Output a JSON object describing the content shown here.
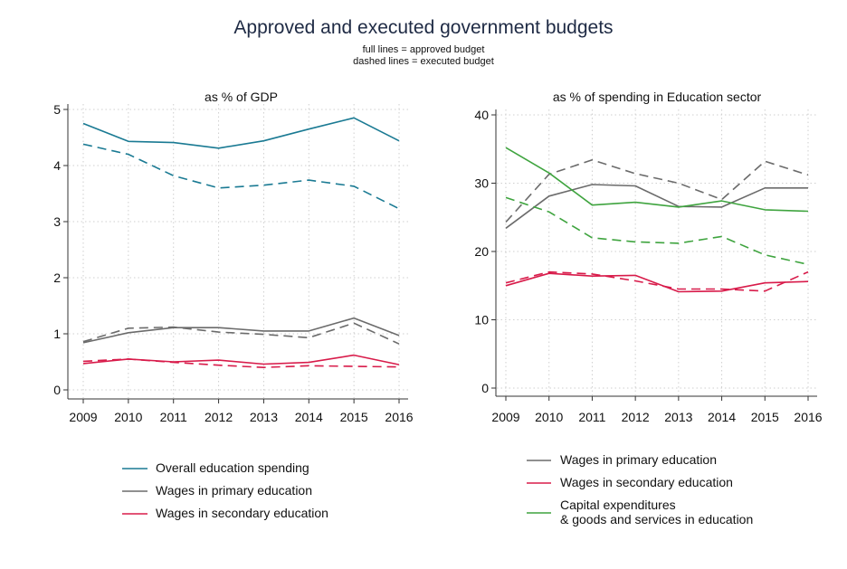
{
  "title": "Approved and executed government budgets",
  "subtitle_lines": [
    "full lines = approved budget",
    "dashed lines = executed budget"
  ],
  "colors": {
    "overall": "#1a7a93",
    "primary": "#6b6b6b",
    "secondary": "#d81b4a",
    "capital": "#3fa43f",
    "axis": "#333333",
    "grid": "#cfcfcf"
  },
  "chart_data": [
    {
      "type": "line",
      "title": "as % of GDP",
      "x": [
        2009,
        2010,
        2011,
        2012,
        2013,
        2014,
        2015,
        2016
      ],
      "ylim": [
        0,
        5
      ],
      "yticks": [
        0,
        1,
        2,
        3,
        4,
        5
      ],
      "series": [
        {
          "name": "Overall education spending",
          "color_key": "overall",
          "style": "approved",
          "values": [
            4.75,
            4.43,
            4.41,
            4.31,
            4.44,
            4.65,
            4.85,
            4.44
          ]
        },
        {
          "name": "Overall education spending",
          "color_key": "overall",
          "style": "executed",
          "values": [
            4.38,
            4.2,
            3.82,
            3.6,
            3.65,
            3.74,
            3.63,
            3.23
          ]
        },
        {
          "name": "Wages in primary education",
          "color_key": "primary",
          "style": "approved",
          "values": [
            0.84,
            1.02,
            1.11,
            1.11,
            1.05,
            1.05,
            1.28,
            0.97
          ]
        },
        {
          "name": "Wages in primary education",
          "color_key": "primary",
          "style": "executed",
          "values": [
            0.86,
            1.1,
            1.12,
            1.03,
            0.99,
            0.93,
            1.19,
            0.82
          ]
        },
        {
          "name": "Wages in secondary education",
          "color_key": "secondary",
          "style": "approved",
          "values": [
            0.47,
            0.55,
            0.5,
            0.53,
            0.46,
            0.49,
            0.62,
            0.45
          ]
        },
        {
          "name": "Wages in secondary education",
          "color_key": "secondary",
          "style": "executed",
          "values": [
            0.51,
            0.55,
            0.49,
            0.44,
            0.4,
            0.43,
            0.42,
            0.41
          ]
        }
      ],
      "legend": [
        {
          "label": "Overall education spending",
          "color_key": "overall"
        },
        {
          "label": "Wages in primary education",
          "color_key": "primary"
        },
        {
          "label": "Wages in secondary education",
          "color_key": "secondary"
        }
      ]
    },
    {
      "type": "line",
      "title": "as % of spending in Education sector",
      "x": [
        2009,
        2010,
        2011,
        2012,
        2013,
        2014,
        2015,
        2016
      ],
      "ylim": [
        0,
        40
      ],
      "yticks": [
        0,
        10,
        20,
        30,
        40
      ],
      "series": [
        {
          "name": "Wages in primary education",
          "color_key": "primary",
          "style": "approved",
          "values": [
            23.4,
            28.1,
            29.8,
            29.6,
            26.6,
            26.5,
            29.3,
            29.3
          ]
        },
        {
          "name": "Wages in primary education",
          "color_key": "primary",
          "style": "executed",
          "values": [
            24.3,
            31.3,
            33.4,
            31.4,
            30.0,
            27.6,
            33.2,
            31.2
          ]
        },
        {
          "name": "Wages in secondary education",
          "color_key": "secondary",
          "style": "approved",
          "values": [
            15.0,
            16.8,
            16.4,
            16.5,
            14.1,
            14.2,
            15.4,
            15.6
          ]
        },
        {
          "name": "Wages in secondary education",
          "color_key": "secondary",
          "style": "executed",
          "values": [
            15.4,
            17.0,
            16.7,
            15.7,
            14.5,
            14.5,
            14.2,
            17.0
          ]
        },
        {
          "name": "Capital expenditures & goods and services in education",
          "color_key": "capital",
          "style": "approved",
          "values": [
            35.2,
            31.5,
            26.8,
            27.2,
            26.5,
            27.4,
            26.1,
            25.9
          ]
        },
        {
          "name": "Capital expenditures & goods and services in education",
          "color_key": "capital",
          "style": "executed",
          "values": [
            27.9,
            25.8,
            22.0,
            21.4,
            21.2,
            22.2,
            19.5,
            18.1
          ]
        }
      ],
      "legend": [
        {
          "label": "Wages in primary education",
          "color_key": "primary"
        },
        {
          "label": "Wages in secondary education",
          "color_key": "secondary"
        },
        {
          "label": "Capital expenditures\n& goods and services in education",
          "color_key": "capital"
        }
      ]
    }
  ]
}
